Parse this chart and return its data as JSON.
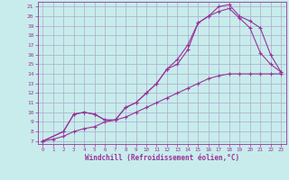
{
  "xlabel": "Windchill (Refroidissement éolien,°C)",
  "bg_color": "#c8ecec",
  "line_color": "#993399",
  "grid_color": "#aaaacc",
  "xlim": [
    -0.5,
    23.5
  ],
  "ylim": [
    6.7,
    21.5
  ],
  "xticks": [
    0,
    1,
    2,
    3,
    4,
    5,
    6,
    7,
    8,
    9,
    10,
    11,
    12,
    13,
    14,
    15,
    16,
    17,
    18,
    19,
    20,
    21,
    22,
    23
  ],
  "yticks": [
    7,
    8,
    9,
    10,
    11,
    12,
    13,
    14,
    15,
    16,
    17,
    18,
    19,
    20,
    21
  ],
  "line1_x": [
    0,
    1,
    2,
    3,
    4,
    5,
    6,
    7,
    8,
    9,
    10,
    11,
    12,
    13,
    14,
    15,
    16,
    17,
    18,
    19,
    20,
    21,
    22,
    23
  ],
  "line1_y": [
    7.0,
    7.2,
    7.5,
    8.0,
    8.3,
    8.5,
    9.0,
    9.2,
    9.5,
    10.0,
    10.5,
    11.0,
    11.5,
    12.0,
    12.5,
    13.0,
    13.5,
    13.8,
    14.0,
    14.0,
    14.0,
    14.0,
    14.0,
    14.0
  ],
  "line2_x": [
    0,
    2,
    3,
    4,
    5,
    6,
    7,
    8,
    9,
    10,
    11,
    12,
    13,
    14,
    15,
    16,
    17,
    18,
    19,
    20,
    21,
    22,
    23
  ],
  "line2_y": [
    7.0,
    8.0,
    9.8,
    10.0,
    9.8,
    9.2,
    9.2,
    10.5,
    11.0,
    12.0,
    13.0,
    14.5,
    15.5,
    17.0,
    19.3,
    20.0,
    20.5,
    20.8,
    19.8,
    18.8,
    16.2,
    15.0,
    14.2
  ],
  "line3_x": [
    0,
    2,
    3,
    4,
    5,
    6,
    7,
    8,
    9,
    10,
    11,
    12,
    13,
    14,
    15,
    16,
    17,
    18,
    19,
    20,
    21,
    22,
    23
  ],
  "line3_y": [
    7.0,
    8.0,
    9.8,
    10.0,
    9.8,
    9.2,
    9.2,
    10.5,
    11.0,
    12.0,
    13.0,
    14.5,
    15.0,
    16.5,
    19.3,
    20.0,
    21.0,
    21.2,
    20.0,
    19.5,
    18.8,
    16.0,
    14.2
  ]
}
